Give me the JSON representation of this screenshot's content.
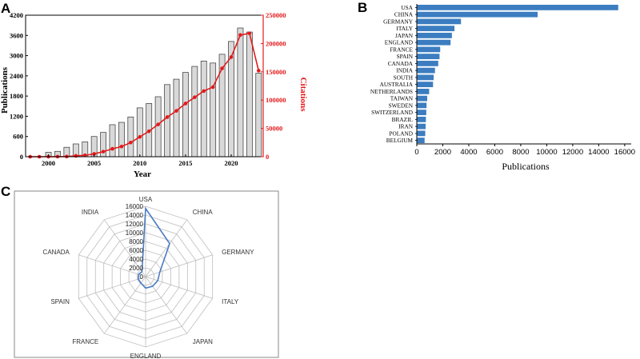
{
  "panels": {
    "a": "A",
    "b": "B",
    "c": "C"
  },
  "colors": {
    "bar_fill": "#d9d9d9",
    "bar_stroke": "#333333",
    "citation_line": "#e31a1c",
    "hbar": "#3b7dc0",
    "radar_line": "#4a7cc2",
    "grid": "#bdbdbd"
  },
  "chart_data": [
    {
      "type": "bar",
      "panel": "A",
      "title": "",
      "xlabel": "Year",
      "ylabel": "Publications",
      "y2label": "Citations",
      "xticks": [
        "2000",
        "2005",
        "2010",
        "2015",
        "2020"
      ],
      "yticks": [
        "0",
        "600",
        "1200",
        "1800",
        "2400",
        "3000",
        "3600",
        "4200"
      ],
      "y2ticks": [
        "0",
        "50000",
        "100000",
        "150000",
        "200000",
        "250000"
      ],
      "ylim": [
        0,
        4200
      ],
      "y2lim": [
        0,
        250000
      ],
      "x": [
        1998,
        1999,
        2000,
        2001,
        2002,
        2003,
        2004,
        2005,
        2006,
        2007,
        2008,
        2009,
        2010,
        2011,
        2012,
        2013,
        2014,
        2015,
        2016,
        2017,
        2018,
        2019,
        2020,
        2021,
        2022,
        2023
      ],
      "series": [
        {
          "name": "Publications",
          "kind": "bar",
          "axis": "left",
          "values": [
            0,
            0,
            130,
            160,
            280,
            380,
            440,
            600,
            720,
            950,
            1020,
            1180,
            1450,
            1580,
            1780,
            2140,
            2300,
            2500,
            2680,
            2840,
            2780,
            3040,
            3420,
            3820,
            3700,
            2480
          ]
        },
        {
          "name": "Citations",
          "kind": "line",
          "axis": "right",
          "values": [
            0,
            0,
            0,
            100,
            300,
            1500,
            2500,
            5000,
            9000,
            14000,
            18000,
            25000,
            35000,
            45000,
            57000,
            70000,
            81000,
            94000,
            105000,
            116000,
            123000,
            156000,
            176000,
            215000,
            218000,
            152000
          ]
        }
      ]
    },
    {
      "type": "bar",
      "panel": "B",
      "orientation": "horizontal",
      "xlabel": "Publications",
      "xticks": [
        "0",
        "2000",
        "4000",
        "6000",
        "8000",
        "10000",
        "12000",
        "14000",
        "16000"
      ],
      "xlim": [
        0,
        16500
      ],
      "categories": [
        "USA",
        "CHINA",
        "GERMANY",
        "ITALY",
        "JAPAN",
        "ENGLAND",
        "FRANCE",
        "SPAIN",
        "CANADA",
        "INDIA",
        "SOUTH",
        "AUSTRALIA",
        "NETHERLANDS",
        "TAIWAN",
        "SWEDEN",
        "SWITZERLAND",
        "BRAZIL",
        "IRAN",
        "POLAND",
        "BELGIUM"
      ],
      "values": [
        15500,
        9300,
        3400,
        2900,
        2700,
        2600,
        1800,
        1750,
        1650,
        1400,
        1300,
        1250,
        950,
        800,
        750,
        730,
        700,
        680,
        650,
        600
      ]
    },
    {
      "type": "radar",
      "panel": "C",
      "categories": [
        "USA",
        "CHINA",
        "GERMANY",
        "ITALY",
        "JAPAN",
        "ENGLAND",
        "FRANCE",
        "SPAIN",
        "CANADA",
        "INDIA"
      ],
      "values": [
        15500,
        9300,
        3400,
        2900,
        2700,
        2600,
        1800,
        1750,
        1650,
        1400
      ],
      "rticks": [
        "0",
        "2000",
        "4000",
        "6000",
        "8000",
        "10000",
        "12000",
        "14000",
        "16000"
      ],
      "rlim": [
        0,
        16000
      ]
    }
  ]
}
